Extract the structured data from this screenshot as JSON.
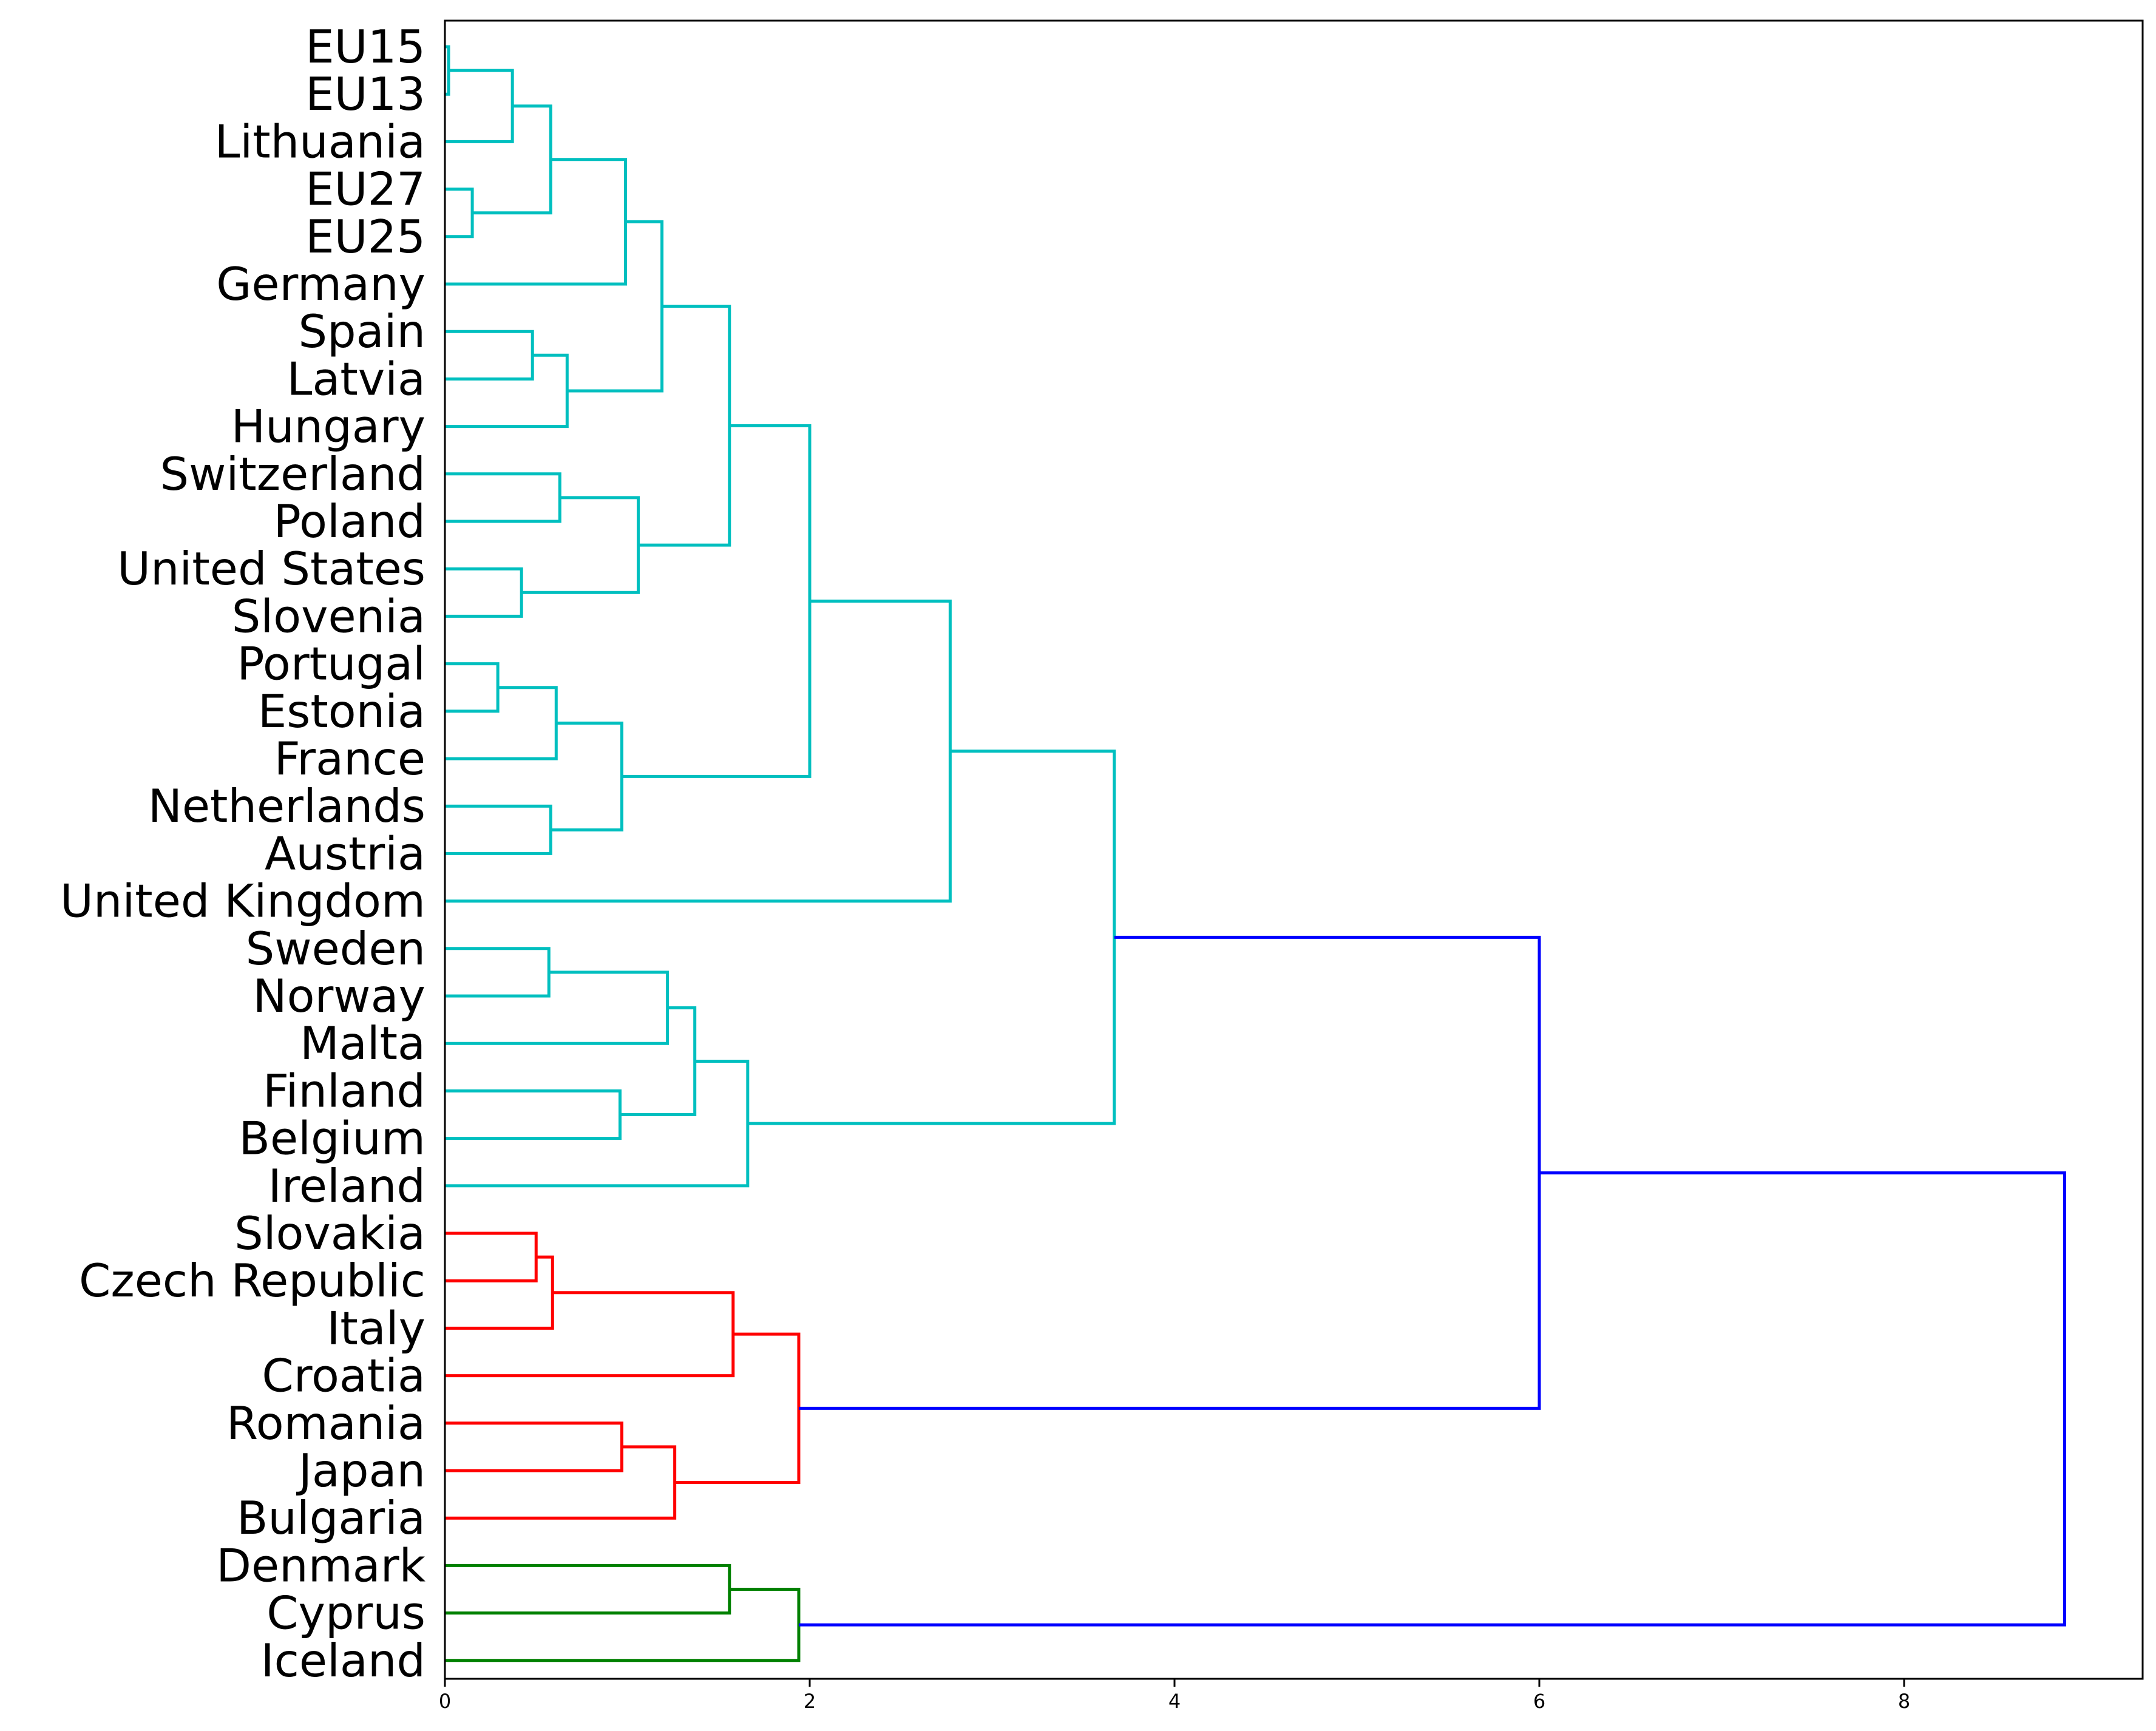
{
  "chart_data": {
    "type": "dendrogram",
    "orientation": "left",
    "leaves": [
      "EU15",
      "EU13",
      "Lithuania",
      "EU27",
      "EU25",
      "Germany",
      "Spain",
      "Latvia",
      "Hungary",
      "Switzerland",
      "Poland",
      "United States",
      "Slovenia",
      "Portugal",
      "Estonia",
      "France",
      "Netherlands",
      "Austria",
      "United Kingdom",
      "Sweden",
      "Norway",
      "Malta",
      "Finland",
      "Belgium",
      "Ireland",
      "Slovakia",
      "Czech Republic",
      "Italy",
      "Croatia",
      "Romania",
      "Japan",
      "Bulgaria",
      "Denmark",
      "Cyprus",
      "Iceland"
    ],
    "x_ticks": [
      "0",
      "2",
      "4",
      "6",
      "8"
    ],
    "xlim": [
      0,
      9.3
    ],
    "colors": {
      "cluster_cyan": "#00bfbf",
      "cluster_red": "#ff0000",
      "cluster_green": "#008000",
      "above_threshold": "#0000ff",
      "axes": "#000000"
    },
    "merges": [
      {
        "left": "EU15",
        "right": "EU13",
        "height": 0.02,
        "color": "cluster_cyan"
      },
      {
        "left": "m0",
        "right": "Lithuania",
        "height": 0.37,
        "color": "cluster_cyan"
      },
      {
        "left": "EU27",
        "right": "EU25",
        "height": 0.15,
        "color": "cluster_cyan"
      },
      {
        "left": "m1",
        "right": "m2",
        "height": 0.58,
        "color": "cluster_cyan"
      },
      {
        "left": "m3",
        "right": "Germany",
        "height": 0.99,
        "color": "cluster_cyan"
      },
      {
        "left": "Spain",
        "right": "Latvia",
        "height": 0.48,
        "color": "cluster_cyan"
      },
      {
        "left": "m5",
        "right": "Hungary",
        "height": 0.67,
        "color": "cluster_cyan"
      },
      {
        "left": "m4",
        "right": "m6",
        "height": 1.19,
        "color": "cluster_cyan"
      },
      {
        "left": "Switzerland",
        "right": "Poland",
        "height": 0.63,
        "color": "cluster_cyan"
      },
      {
        "left": "United States",
        "right": "Slovenia",
        "height": 0.42,
        "color": "cluster_cyan"
      },
      {
        "left": "m8",
        "right": "m9",
        "height": 1.06,
        "color": "cluster_cyan"
      },
      {
        "left": "m7",
        "right": "m10",
        "height": 1.56,
        "color": "cluster_cyan"
      },
      {
        "left": "Portugal",
        "right": "Estonia",
        "height": 0.29,
        "color": "cluster_cyan"
      },
      {
        "left": "m12",
        "right": "France",
        "height": 0.61,
        "color": "cluster_cyan"
      },
      {
        "left": "Netherlands",
        "right": "Austria",
        "height": 0.58,
        "color": "cluster_cyan"
      },
      {
        "left": "m13",
        "right": "m14",
        "height": 0.97,
        "color": "cluster_cyan"
      },
      {
        "left": "m11",
        "right": "m15",
        "height": 2.0,
        "color": "cluster_cyan"
      },
      {
        "left": "m16",
        "right": "United Kingdom",
        "height": 2.77,
        "color": "cluster_cyan"
      },
      {
        "left": "Sweden",
        "right": "Norway",
        "height": 0.57,
        "color": "cluster_cyan"
      },
      {
        "left": "m18",
        "right": "Malta",
        "height": 1.22,
        "color": "cluster_cyan"
      },
      {
        "left": "Finland",
        "right": "Belgium",
        "height": 0.96,
        "color": "cluster_cyan"
      },
      {
        "left": "m19",
        "right": "m20",
        "height": 1.37,
        "color": "cluster_cyan"
      },
      {
        "left": "m21",
        "right": "Ireland",
        "height": 1.66,
        "color": "cluster_cyan"
      },
      {
        "left": "m17",
        "right": "m22",
        "height": 3.67,
        "color": "cluster_cyan"
      },
      {
        "left": "Slovakia",
        "right": "Czech Republic",
        "height": 0.5,
        "color": "cluster_red"
      },
      {
        "left": "m24",
        "right": "Italy",
        "height": 0.59,
        "color": "cluster_red"
      },
      {
        "left": "m25",
        "right": "Croatia",
        "height": 1.58,
        "color": "cluster_red"
      },
      {
        "left": "Romania",
        "right": "Japan",
        "height": 0.97,
        "color": "cluster_red"
      },
      {
        "left": "m27",
        "right": "Bulgaria",
        "height": 1.26,
        "color": "cluster_red"
      },
      {
        "left": "m26",
        "right": "m28",
        "height": 1.94,
        "color": "cluster_red"
      },
      {
        "left": "m23",
        "right": "m29",
        "height": 6.0,
        "color": "above_threshold"
      },
      {
        "left": "Denmark",
        "right": "Cyprus",
        "height": 1.56,
        "color": "cluster_green"
      },
      {
        "left": "m31",
        "right": "Iceland",
        "height": 1.94,
        "color": "cluster_green"
      },
      {
        "left": "m30",
        "right": "m32",
        "height": 8.88,
        "color": "above_threshold"
      }
    ]
  }
}
